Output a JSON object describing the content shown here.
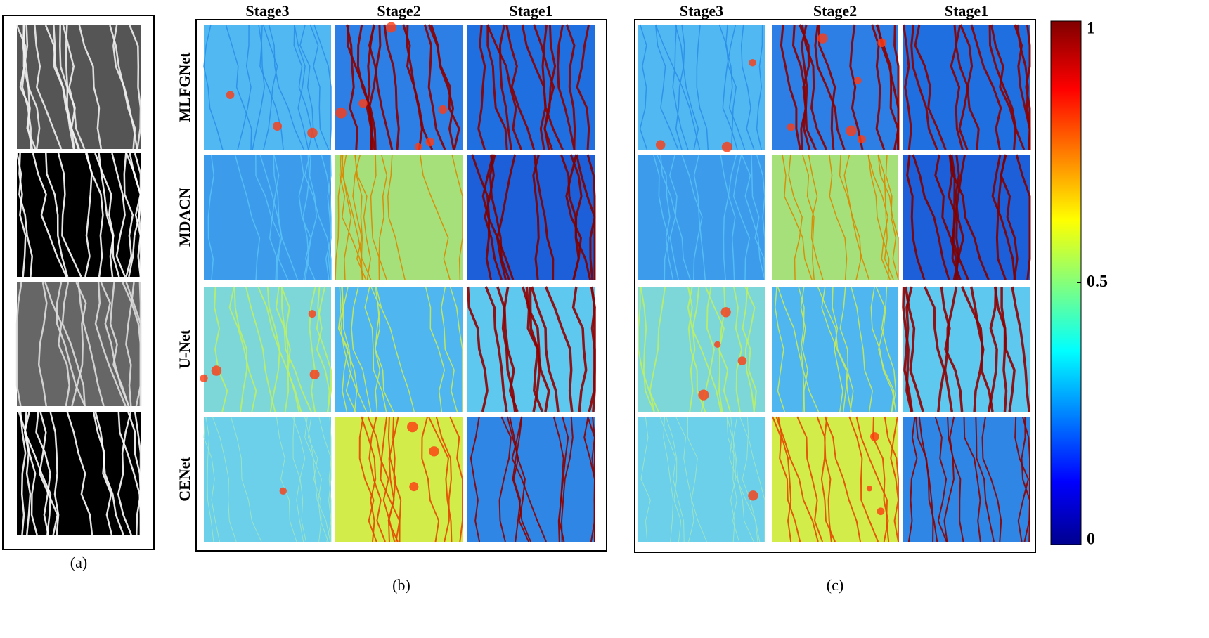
{
  "panel_a": {
    "caption": "(a)"
  },
  "panel_b": {
    "columns": [
      "Stage3",
      "Stage2",
      "Stage1"
    ],
    "rows": [
      "MLFGNet",
      "MDACN",
      "U-Net",
      "CENet"
    ],
    "caption": "(b)"
  },
  "panel_c": {
    "columns": [
      "Stage3",
      "Stage2",
      "Stage1"
    ],
    "caption": "(c)"
  },
  "colorbar": {
    "ticks": [
      1,
      0.5,
      0
    ]
  }
}
